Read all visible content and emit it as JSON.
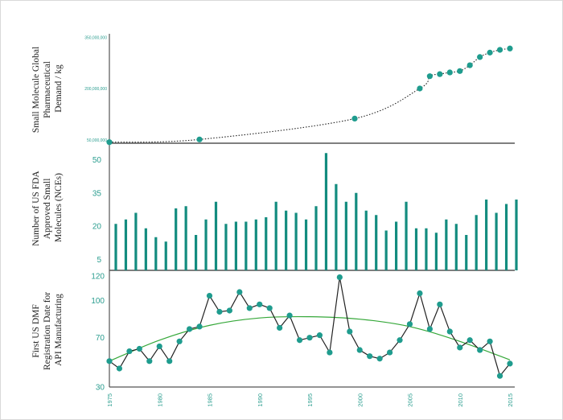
{
  "colors": {
    "teal": "#1f9c8e",
    "teal_dark": "#138c7f",
    "curve": "#222222",
    "trend": "#36a83a",
    "axis": "#555555"
  },
  "chart_data": [
    {
      "type": "line",
      "ylabel_lines": [
        "Small Molecule Global",
        "Pharmaceutical",
        "Demand / kg"
      ],
      "ylim": [
        40000000,
        360000000
      ],
      "yticks": [
        50000000,
        200000000,
        350000000
      ],
      "ytick_labels": [
        "50,000,000",
        "200,000,000",
        "350,000,000"
      ],
      "xlim": [
        1975,
        2015.5
      ],
      "style": "dotted line with markers",
      "series": [
        {
          "x": [
            1975,
            1984,
            1999.5,
            2006,
            2007,
            2008,
            2009,
            2010,
            2011,
            2012,
            2013,
            2014,
            2015
          ],
          "values": [
            43000000,
            51000000,
            112000000,
            200000000,
            236000000,
            242000000,
            247000000,
            251000000,
            268000000,
            292000000,
            305000000,
            313000000,
            317000000
          ]
        }
      ]
    },
    {
      "type": "bar",
      "ylabel_lines": [
        "Number of US FDA",
        "Approved Small",
        "Molecules (NCEs)"
      ],
      "ylim": [
        0,
        56
      ],
      "yticks": [
        5,
        20,
        35,
        50
      ],
      "xlim": [
        1975,
        2015.5
      ],
      "x": [
        1975,
        1976,
        1977,
        1978,
        1979,
        1980,
        1981,
        1982,
        1983,
        1984,
        1985,
        1986,
        1987,
        1988,
        1989,
        1990,
        1991,
        1992,
        1993,
        1994,
        1995,
        1996,
        1997,
        1998,
        1999,
        2000,
        2001,
        2002,
        2003,
        2004,
        2005,
        2006,
        2007,
        2008,
        2009,
        2010,
        2011,
        2012,
        2013,
        2014,
        2015
      ],
      "values": [
        21,
        23,
        26,
        19,
        15,
        13,
        28,
        29,
        16,
        23,
        31,
        21,
        22,
        22,
        23,
        24,
        31,
        27,
        26,
        23,
        29,
        53,
        39,
        31,
        35,
        27,
        25,
        18,
        22,
        31,
        19,
        19,
        17,
        23,
        21,
        16,
        25,
        32,
        26,
        30,
        32
      ]
    },
    {
      "type": "line",
      "ylabel_lines": [
        "First US DMF",
        "Registration Date for",
        "API Manufacturing"
      ],
      "ylim": [
        30,
        122
      ],
      "yticks": [
        30,
        70,
        100,
        120
      ],
      "xlim": [
        1975,
        2015.5
      ],
      "xticks": [
        1975,
        1980,
        1985,
        1990,
        1995,
        2000,
        2005,
        2010,
        2015
      ],
      "series": [
        {
          "x": [
            1975,
            1976,
            1977,
            1978,
            1979,
            1980,
            1981,
            1982,
            1983,
            1984,
            1985,
            1986,
            1987,
            1988,
            1989,
            1990,
            1991,
            1992,
            1993,
            1994,
            1995,
            1996,
            1997,
            1998,
            1999,
            2000,
            2001,
            2002,
            2003,
            2004,
            2005,
            2006,
            2007,
            2008,
            2009,
            2010,
            2011,
            2012,
            2013,
            2014,
            2015
          ],
          "values": [
            51,
            45,
            59,
            61,
            51,
            63,
            51,
            67,
            77,
            79,
            104,
            91,
            92,
            107,
            94,
            97,
            94,
            78,
            88,
            68,
            70,
            72,
            58,
            119,
            75,
            60,
            55,
            53,
            58,
            68,
            81,
            106,
            77,
            97,
            75,
            62,
            68,
            60,
            67,
            39,
            49
          ]
        }
      ],
      "trend": {
        "x": [
          1975,
          1980,
          1985,
          1990,
          1995,
          2000,
          2005,
          2010,
          2015
        ],
        "values": [
          51,
          68,
          80,
          86,
          87,
          85,
          79,
          67,
          52
        ]
      }
    }
  ]
}
